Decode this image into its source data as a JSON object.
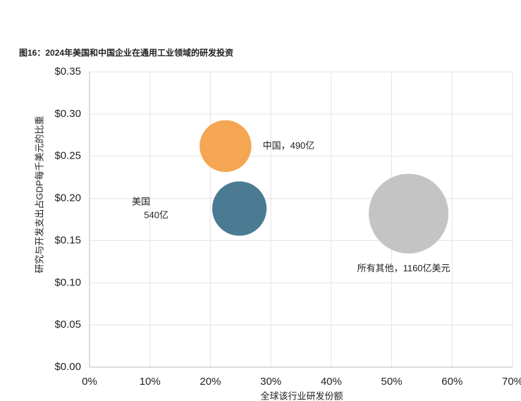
{
  "chart_data": {
    "type": "bubble",
    "title": "图16：2024年美国和中国企业在通用工业领域的研发投资",
    "x_label": "全球该行业研发份额",
    "y_label": "研究与开发支出占GDP每千美元的比重",
    "points": [
      {
        "x": 22.5,
        "y": 0.262,
        "size": 490,
        "color": "#f5a652",
        "label_lines": [
          "中国，490亿"
        ]
      },
      {
        "x": 24.8,
        "y": 0.188,
        "size": 540,
        "color": "#4a7b92",
        "label_lines": [
          "美国",
          "540亿"
        ]
      },
      {
        "x": 52.8,
        "y": 0.182,
        "size": 1160,
        "color": "#c4c4c4",
        "label_lines": [
          "所有其他，1160亿美元"
        ]
      }
    ],
    "xlim": [
      0,
      70
    ],
    "xticks": [
      {
        "value": 0,
        "label": "0%"
      },
      {
        "value": 10,
        "label": "10%"
      },
      {
        "value": 20,
        "label": "20%"
      },
      {
        "value": 30,
        "label": "30%"
      },
      {
        "value": 40,
        "label": "40%"
      },
      {
        "value": 50,
        "label": "50%"
      },
      {
        "value": 60,
        "label": "60%"
      },
      {
        "value": 70,
        "label": "70%"
      }
    ],
    "ylim": [
      0,
      0.35
    ],
    "yticks": [
      {
        "value": 0,
        "label": "$0.00"
      },
      {
        "value": 0.05,
        "label": "$0.05"
      },
      {
        "value": 0.1,
        "label": "$0.10"
      },
      {
        "value": 0.15,
        "label": "$0.15"
      },
      {
        "value": 0.2,
        "label": "$0.20"
      },
      {
        "value": 0.25,
        "label": "$0.25"
      },
      {
        "value": 0.3,
        "label": "$0.30"
      },
      {
        "value": 0.35,
        "label": "$0.35"
      }
    ],
    "grid": true
  }
}
